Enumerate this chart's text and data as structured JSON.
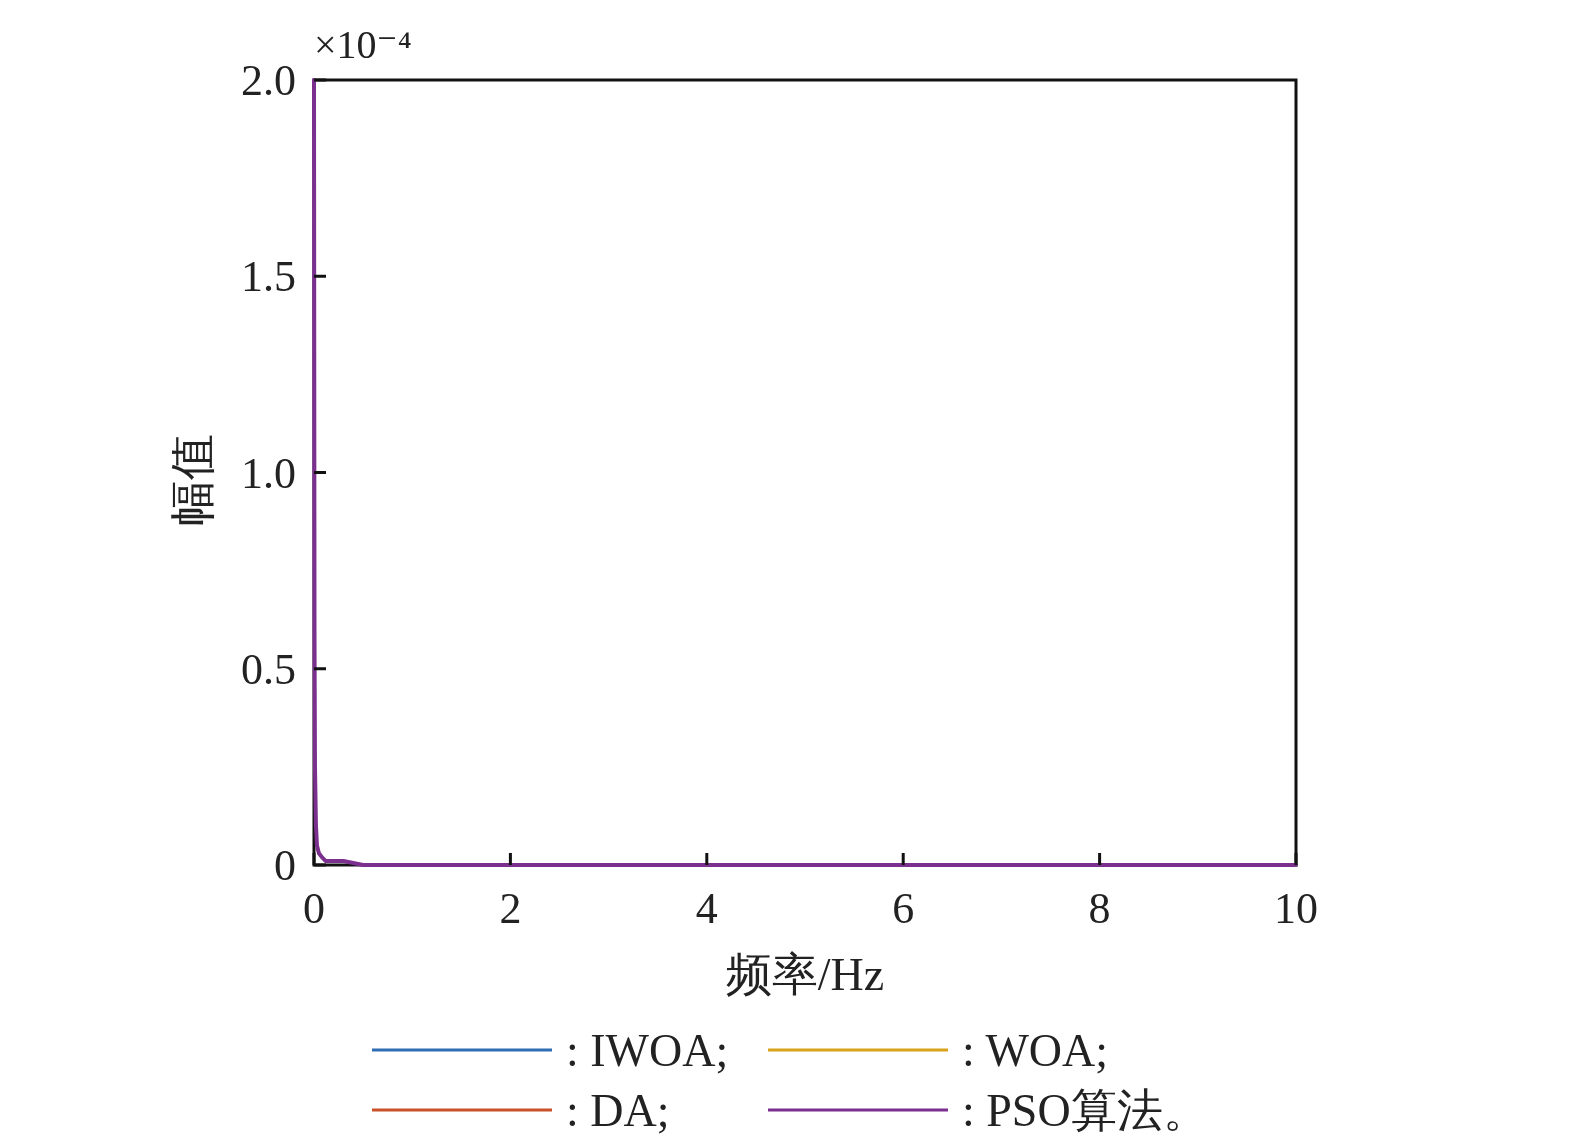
{
  "chart_data": {
    "type": "line",
    "xlabel": "频率/Hz",
    "ylabel": "幅值",
    "annotations": [
      "×10⁻⁴"
    ],
    "x": [
      0,
      0.005,
      0.01,
      0.02,
      0.03,
      0.05,
      0.08,
      0.12,
      0.2,
      0.3,
      0.5,
      1,
      2,
      5,
      10
    ],
    "xlim": [
      0,
      10
    ],
    "xticks": [
      0,
      2,
      4,
      6,
      8,
      10
    ],
    "ylim": [
      0,
      2
    ],
    "yticks": [
      0,
      {
        "value": 0.5,
        "label": "0.5"
      },
      {
        "value": 1,
        "label": "1.0"
      },
      {
        "value": 1.5,
        "label": "1.5"
      },
      {
        "value": 2,
        "label": "2.0"
      }
    ],
    "legend": "bottom",
    "series": [
      {
        "name": ": IWOA;",
        "color": "#2e6db4",
        "values": [
          null,
          null,
          null,
          null,
          null,
          null,
          null,
          null,
          null,
          null,
          null,
          null,
          null,
          null,
          null
        ]
      },
      {
        "name": ": WOA;",
        "color": "#d9a21b",
        "values": [
          null,
          null,
          null,
          null,
          null,
          null,
          null,
          null,
          null,
          null,
          null,
          null,
          null,
          null,
          null
        ]
      },
      {
        "name": ": DA;",
        "color": "#c8502a",
        "values": [
          null,
          null,
          null,
          null,
          null,
          null,
          null,
          null,
          null,
          null,
          null,
          null,
          null,
          null,
          null
        ]
      },
      {
        "name": ": PSO算法。",
        "color": "#7b2f8e",
        "values": [
          2.0,
          0.6,
          0.25,
          0.1,
          0.05,
          0.03,
          0.02,
          0.01,
          0.01,
          0.01,
          0,
          0,
          0,
          0,
          0
        ]
      }
    ]
  }
}
